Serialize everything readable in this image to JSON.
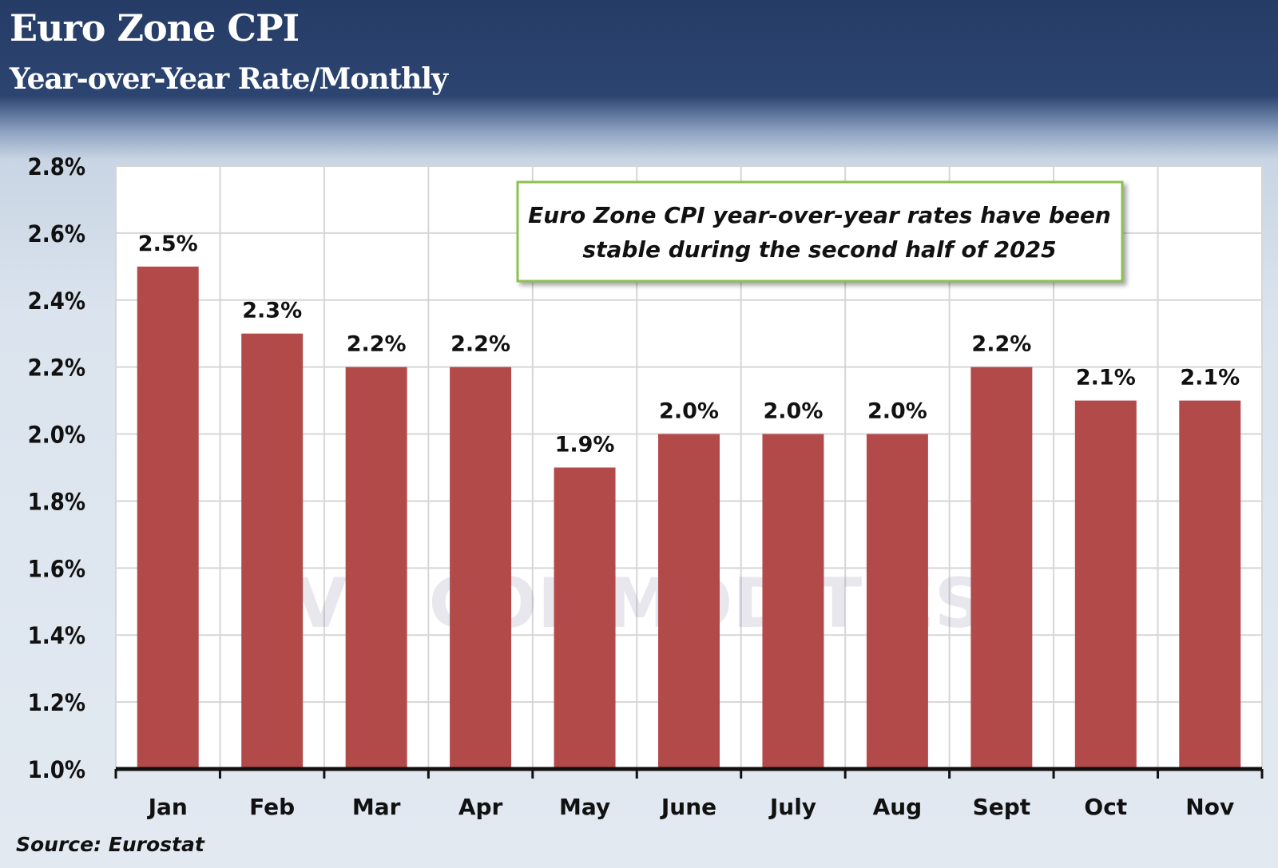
{
  "chart_data": {
    "type": "bar",
    "title": "Euro Zone CPI",
    "subtitle": "Year-over-Year Rate/Monthly",
    "categories": [
      "Jan",
      "Feb",
      "Mar",
      "Apr",
      "May",
      "June",
      "July",
      "Aug",
      "Sept",
      "Oct",
      "Nov"
    ],
    "values": [
      2.5,
      2.3,
      2.2,
      2.2,
      1.9,
      2.0,
      2.0,
      2.0,
      2.2,
      2.1,
      2.1
    ],
    "data_labels": [
      "2.5%",
      "2.3%",
      "2.2%",
      "2.2%",
      "1.9%",
      "2.0%",
      "2.0%",
      "2.0%",
      "2.2%",
      "2.1%",
      "2.1%"
    ],
    "ylim": [
      1.0,
      2.8
    ],
    "yticks": [
      "1.0%",
      "1.2%",
      "1.4%",
      "1.6%",
      "1.8%",
      "2.0%",
      "2.2%",
      "2.4%",
      "2.6%",
      "2.8%"
    ],
    "grid": true,
    "annotation": "Euro Zone CPI year-over-year rates have been stable during the second half of 2025",
    "annotation_lines": [
      "Euro Zone CPI year-over-year rates have been",
      "stable during the second half of 2025"
    ],
    "source": "Source: Eurostat",
    "watermark": "VN COMMODITIES",
    "colors": {
      "bar": "#b34a4a",
      "header": "#263d68",
      "annotation_border": "#8cc152"
    }
  }
}
